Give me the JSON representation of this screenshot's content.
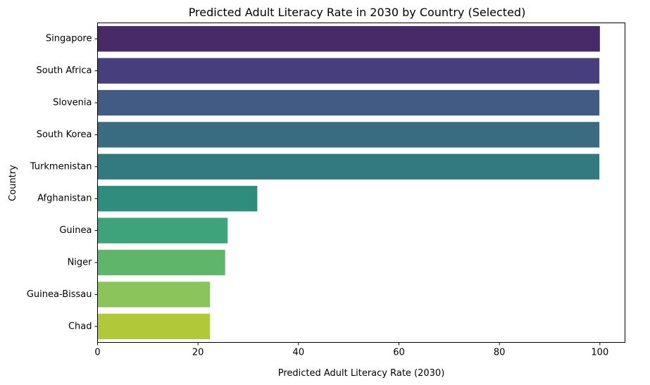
{
  "chart_data": {
    "type": "bar",
    "orientation": "horizontal",
    "title": "Predicted Adult Literacy Rate in 2030 by Country (Selected)",
    "xlabel": "Predicted Adult Literacy Rate (2030)",
    "ylabel": "Country",
    "xlim": [
      0,
      105
    ],
    "xticks": [
      0,
      20,
      40,
      60,
      80,
      100
    ],
    "grid": false,
    "categories": [
      "Singapore",
      "South Africa",
      "Slovenia",
      "South Korea",
      "Turkmenistan",
      "Afghanistan",
      "Guinea",
      "Niger",
      "Guinea-Bissau",
      "Chad"
    ],
    "values": [
      100.0,
      99.9,
      99.9,
      99.9,
      99.9,
      31.8,
      25.9,
      25.4,
      22.4,
      22.4
    ],
    "colors": [
      "#482a69",
      "#473f7d",
      "#425b85",
      "#3a6c81",
      "#327a80",
      "#2e8d7d",
      "#3ea37b",
      "#5fb66b",
      "#8ac45a",
      "#b1c938"
    ]
  }
}
